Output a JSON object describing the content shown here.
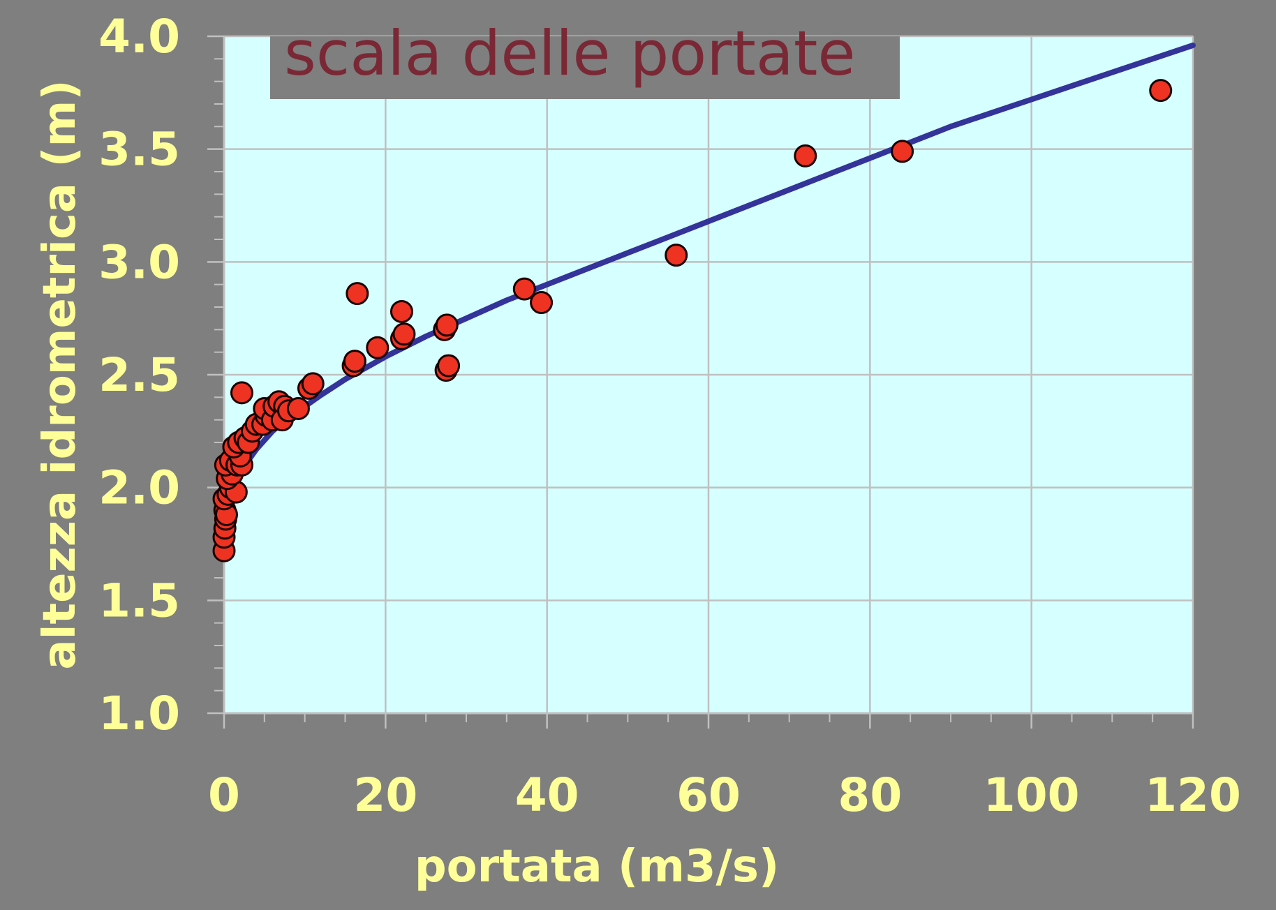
{
  "chart_data": {
    "type": "scatter",
    "title": "scala delle portate",
    "xlabel": "portata (m3/s)",
    "ylabel": "altezza idrometrica (m)",
    "xlim": [
      0,
      120
    ],
    "ylim": [
      1.0,
      4.0
    ],
    "x_ticks": [
      "0",
      "20",
      "40",
      "60",
      "80",
      "100",
      "120"
    ],
    "y_ticks": [
      "1.0",
      "1.5",
      "2.0",
      "2.5",
      "3.0",
      "3.5",
      "4.0"
    ],
    "grid": true,
    "legend": "none",
    "colors": {
      "background": "#7f7f7f",
      "plot_area": "#d6ffff",
      "gridline": "#c0c0c0",
      "points": "#ee3322",
      "curve": "#333399",
      "text": "#ffff99",
      "title_box": "#7f7f7f",
      "title_text": "#7a2835"
    },
    "series": [
      {
        "kind": "scatter",
        "points": [
          [
            0.0,
            1.72
          ],
          [
            0.0,
            1.78
          ],
          [
            0.1,
            1.82
          ],
          [
            0.2,
            1.86
          ],
          [
            0.1,
            1.9
          ],
          [
            0.3,
            1.88
          ],
          [
            0.0,
            1.95
          ],
          [
            0.5,
            1.97
          ],
          [
            0.8,
            2.0
          ],
          [
            1.5,
            1.98
          ],
          [
            0.4,
            2.04
          ],
          [
            1.0,
            2.06
          ],
          [
            0.2,
            2.1
          ],
          [
            0.8,
            2.12
          ],
          [
            1.6,
            2.1
          ],
          [
            2.2,
            2.1
          ],
          [
            2.0,
            2.14
          ],
          [
            1.2,
            2.18
          ],
          [
            1.8,
            2.2
          ],
          [
            2.6,
            2.22
          ],
          [
            3.0,
            2.2
          ],
          [
            3.5,
            2.25
          ],
          [
            4.0,
            2.28
          ],
          [
            4.8,
            2.28
          ],
          [
            5.2,
            2.32
          ],
          [
            5.0,
            2.35
          ],
          [
            6.0,
            2.3
          ],
          [
            6.2,
            2.36
          ],
          [
            6.8,
            2.38
          ],
          [
            7.5,
            2.36
          ],
          [
            7.2,
            2.3
          ],
          [
            8.0,
            2.34
          ],
          [
            9.2,
            2.35
          ],
          [
            10.5,
            2.44
          ],
          [
            11.0,
            2.46
          ],
          [
            2.2,
            2.42
          ],
          [
            16.0,
            2.54
          ],
          [
            16.2,
            2.56
          ],
          [
            16.5,
            2.86
          ],
          [
            19.0,
            2.62
          ],
          [
            22.0,
            2.66
          ],
          [
            22.3,
            2.68
          ],
          [
            22.0,
            2.78
          ],
          [
            27.5,
            2.52
          ],
          [
            27.8,
            2.54
          ],
          [
            27.3,
            2.7
          ],
          [
            27.6,
            2.72
          ],
          [
            37.2,
            2.88
          ],
          [
            39.3,
            2.82
          ],
          [
            56.0,
            3.03
          ],
          [
            72.0,
            3.47
          ],
          [
            84.0,
            3.49
          ],
          [
            116.0,
            3.76
          ]
        ]
      },
      {
        "kind": "line",
        "points": [
          [
            0.5,
            1.75
          ],
          [
            0.6,
            1.85
          ],
          [
            0.8,
            1.92
          ],
          [
            1.0,
            1.96
          ],
          [
            1.5,
            2.02
          ],
          [
            2.0,
            2.06
          ],
          [
            3.0,
            2.12
          ],
          [
            4.0,
            2.17
          ],
          [
            5.0,
            2.21
          ],
          [
            6.0,
            2.25
          ],
          [
            8.0,
            2.31
          ],
          [
            10.0,
            2.36
          ],
          [
            12.0,
            2.41
          ],
          [
            15.0,
            2.48
          ],
          [
            18.0,
            2.54
          ],
          [
            20.0,
            2.58
          ],
          [
            25.0,
            2.67
          ],
          [
            30.0,
            2.75
          ],
          [
            35.0,
            2.83
          ],
          [
            40.0,
            2.9
          ],
          [
            45.0,
            2.97
          ],
          [
            50.0,
            3.04
          ],
          [
            55.0,
            3.11
          ],
          [
            60.0,
            3.18
          ],
          [
            65.0,
            3.25
          ],
          [
            70.0,
            3.32
          ],
          [
            75.0,
            3.39
          ],
          [
            80.0,
            3.46
          ],
          [
            85.0,
            3.53
          ],
          [
            90.0,
            3.6
          ],
          [
            95.0,
            3.66
          ],
          [
            100.0,
            3.72
          ],
          [
            105.0,
            3.78
          ],
          [
            110.0,
            3.84
          ],
          [
            115.0,
            3.9
          ],
          [
            120.0,
            3.96
          ]
        ]
      }
    ]
  }
}
